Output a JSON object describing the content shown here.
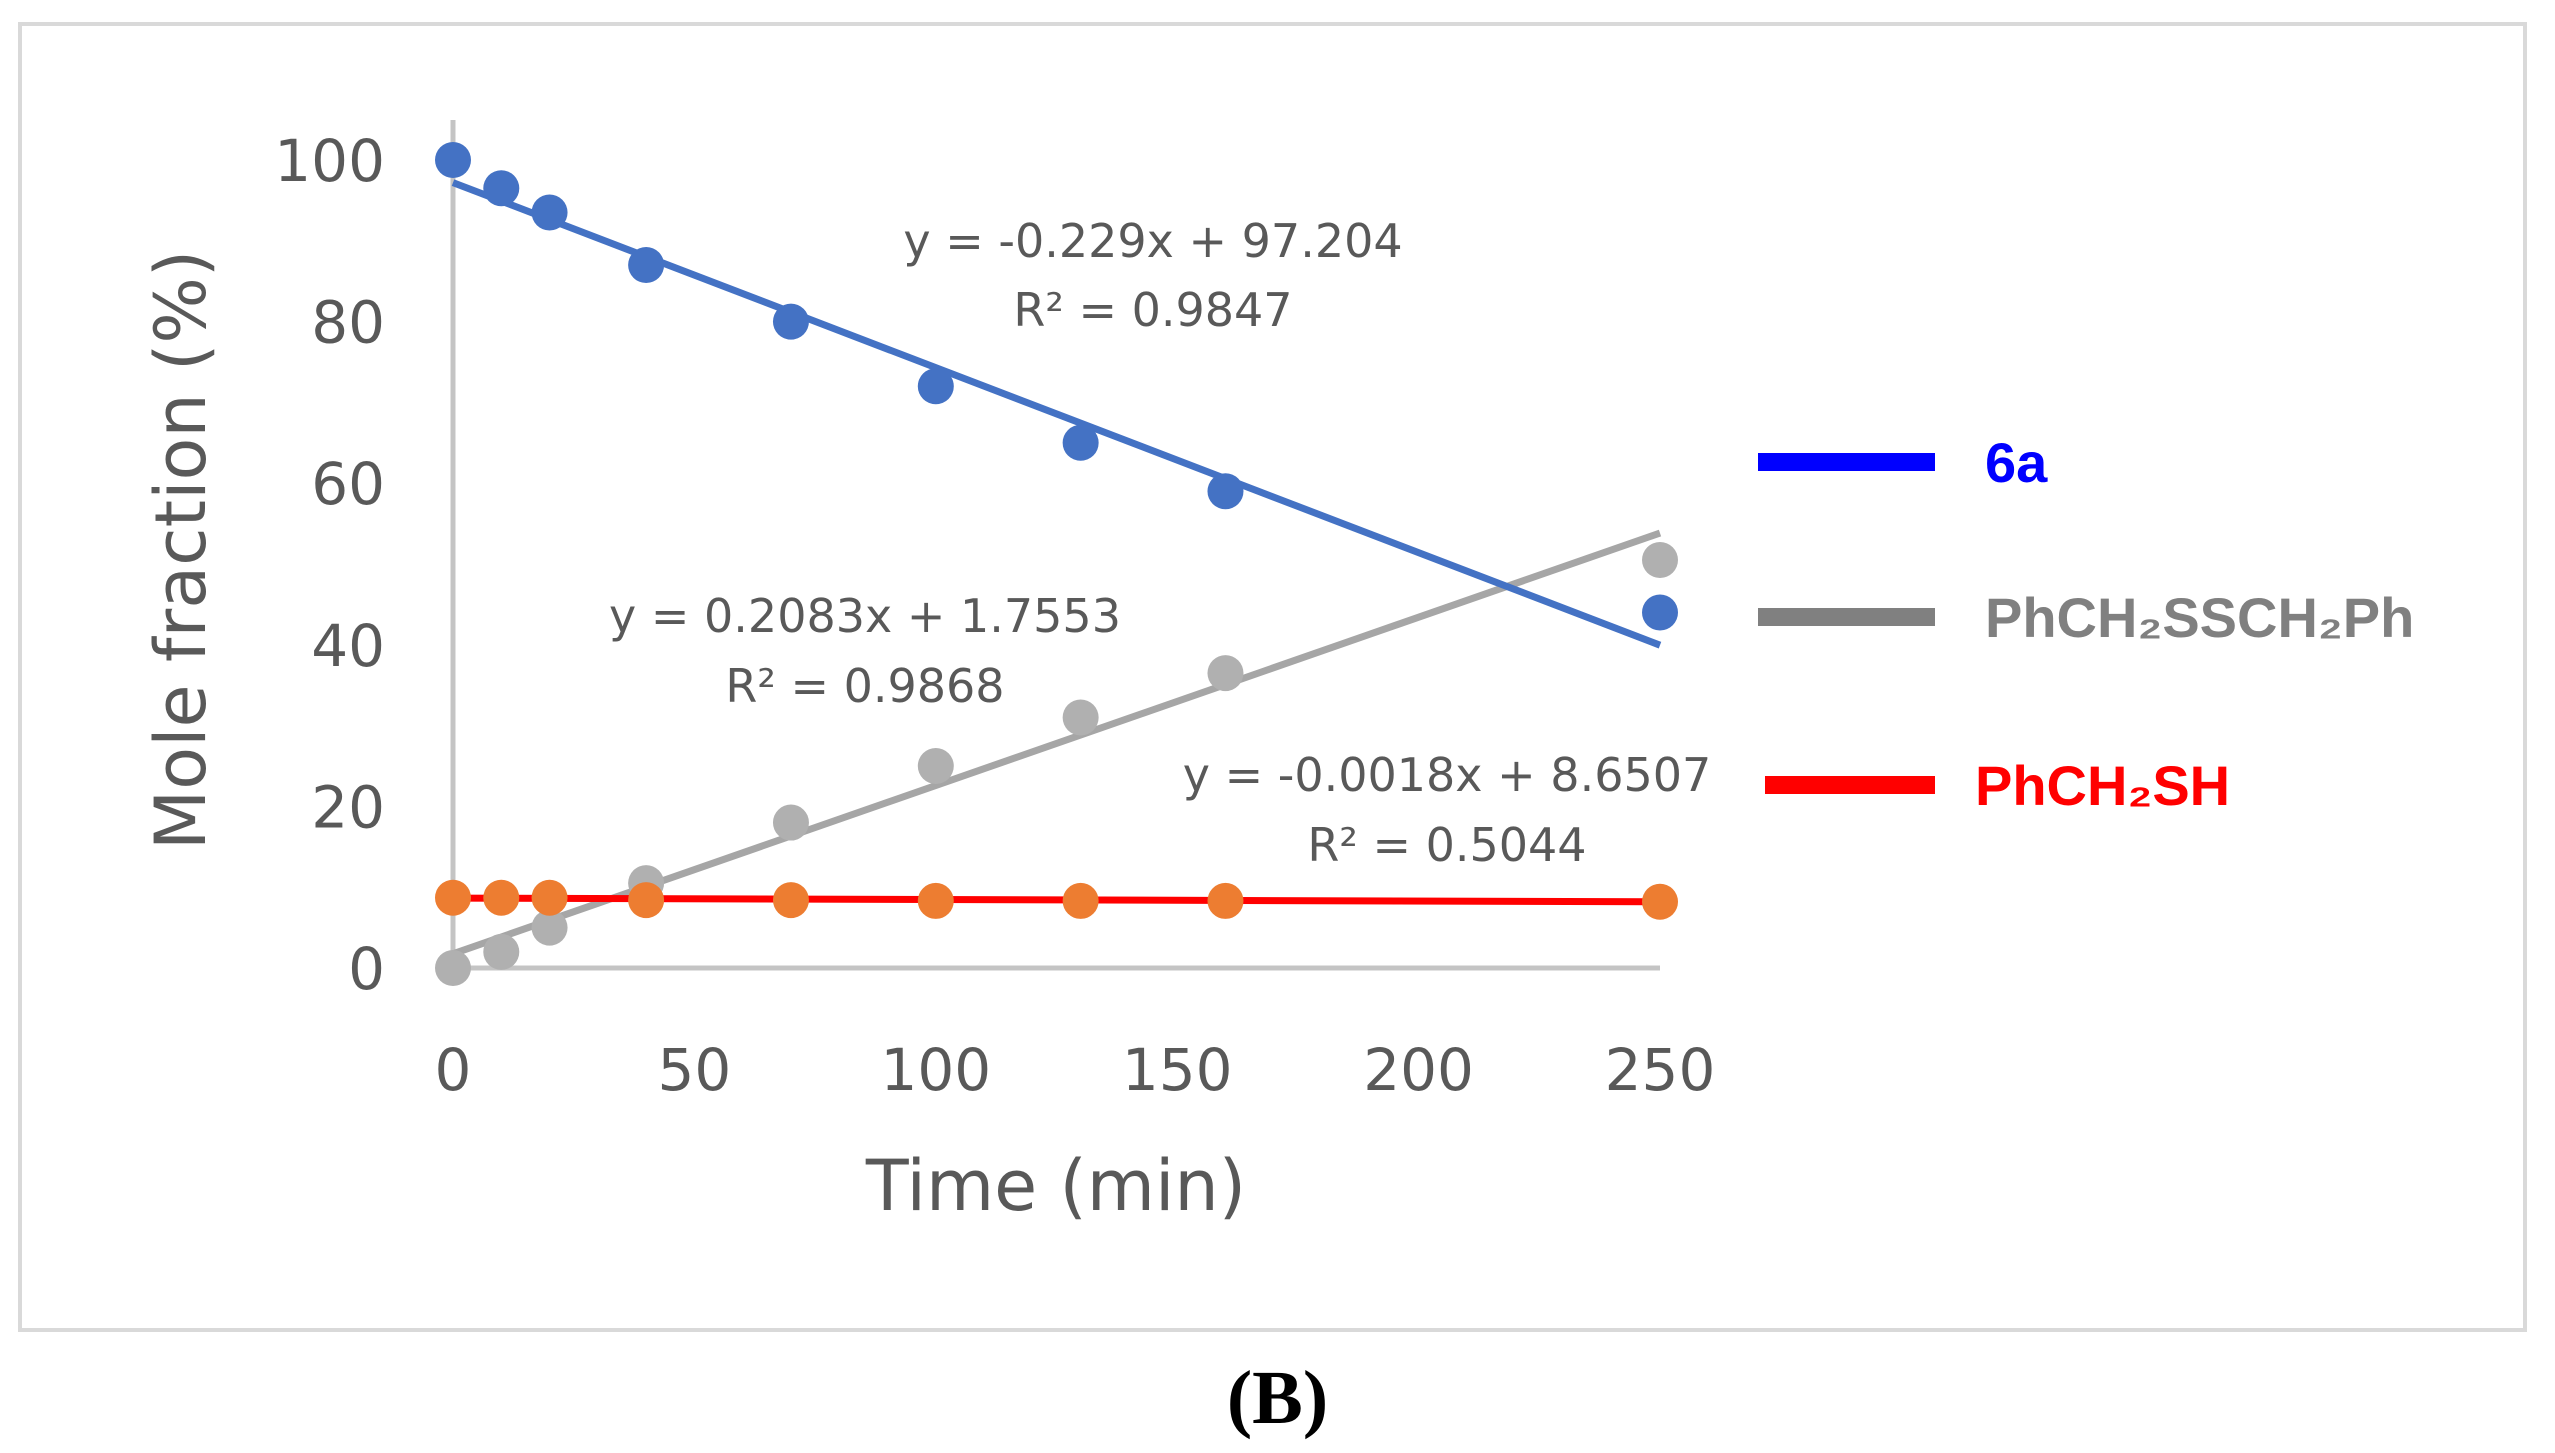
{
  "panel_label": "(B)",
  "chart_data": {
    "type": "scatter",
    "title": "",
    "xlabel": "Time (min)",
    "ylabel": "Mole fraction (%)",
    "xlim": [
      0,
      250
    ],
    "ylim": [
      0,
      100
    ],
    "xticks": [
      "0",
      "50",
      "100",
      "150",
      "200",
      "250"
    ],
    "yticks": [
      "0",
      "20",
      "40",
      "60",
      "80",
      "100"
    ],
    "grid": false,
    "legend_position": "right",
    "x": [
      0,
      10,
      20,
      40,
      70,
      100,
      130,
      160,
      250
    ],
    "series": [
      {
        "name": "6a",
        "legend_label": "6a",
        "marker_color": "#4472c4",
        "line_color": "#4472c4",
        "legend_color": "#0000ff",
        "label_color": "#0000ff",
        "values": [
          100,
          96.5,
          93.5,
          87,
          80,
          72,
          65,
          59,
          44
        ],
        "trendline": {
          "slope": -0.229,
          "intercept": 97.204,
          "equation": "y = -0.229x + 97.204",
          "r2": "R² = 0.9847"
        }
      },
      {
        "name": "PhCH2SSCH2Ph",
        "legend_label": "PhCH₂SSCH₂Ph",
        "marker_color": "#b0b0b0",
        "line_color": "#a6a6a6",
        "legend_color": "#808080",
        "label_color": "#808080",
        "values": [
          0,
          2,
          5,
          10.5,
          18,
          25,
          31,
          36.5,
          50.5
        ],
        "trendline": {
          "slope": 0.2083,
          "intercept": 1.7553,
          "equation": "y = 0.2083x + 1.7553",
          "r2": "R² = 0.9868"
        }
      },
      {
        "name": "PhCH2SH",
        "legend_label": "PhCH₂SH",
        "marker_color": "#ed7d31",
        "line_color": "#ff0000",
        "legend_color": "#ff0000",
        "label_color": "#ff0000",
        "values": [
          8.7,
          8.7,
          8.7,
          8.4,
          8.4,
          8.3,
          8.3,
          8.3,
          8.2
        ],
        "trendline": {
          "slope": -0.0018,
          "intercept": 8.6507,
          "equation": "y = -0.0018x + 8.6507",
          "r2": "R² = 0.5044"
        }
      }
    ]
  }
}
